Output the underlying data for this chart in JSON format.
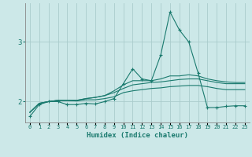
{
  "title": "",
  "xlabel": "Humidex (Indice chaleur)",
  "bg_color": "#cce8e8",
  "line_color": "#1a7a6e",
  "grid_color": "#aacccc",
  "x": [
    0,
    1,
    2,
    3,
    4,
    5,
    6,
    7,
    8,
    9,
    10,
    11,
    12,
    13,
    14,
    15,
    16,
    17,
    18,
    19,
    20,
    21,
    22,
    23
  ],
  "line1": [
    1.75,
    1.95,
    2.0,
    2.0,
    1.95,
    1.95,
    1.97,
    1.96,
    2.0,
    2.05,
    2.3,
    2.55,
    2.38,
    2.35,
    2.78,
    3.5,
    3.2,
    3.0,
    2.48,
    1.9,
    1.9,
    1.92,
    1.93,
    1.93
  ],
  "line2": [
    1.82,
    1.97,
    2.0,
    2.02,
    2.02,
    2.02,
    2.05,
    2.07,
    2.1,
    2.18,
    2.28,
    2.35,
    2.35,
    2.35,
    2.38,
    2.43,
    2.43,
    2.45,
    2.43,
    2.38,
    2.35,
    2.33,
    2.32,
    2.32
  ],
  "line3": [
    1.82,
    1.97,
    2.0,
    2.02,
    2.02,
    2.02,
    2.05,
    2.07,
    2.1,
    2.15,
    2.22,
    2.28,
    2.3,
    2.32,
    2.33,
    2.35,
    2.37,
    2.38,
    2.38,
    2.35,
    2.32,
    2.3,
    2.3,
    2.3
  ],
  "line4": [
    1.82,
    1.97,
    2.0,
    2.02,
    2.02,
    2.01,
    2.03,
    2.03,
    2.05,
    2.08,
    2.15,
    2.18,
    2.2,
    2.22,
    2.23,
    2.25,
    2.26,
    2.27,
    2.27,
    2.25,
    2.22,
    2.2,
    2.2,
    2.2
  ],
  "ylim": [
    1.65,
    3.65
  ],
  "yticks": [
    2,
    3
  ],
  "xlim": [
    -0.5,
    23.5
  ]
}
